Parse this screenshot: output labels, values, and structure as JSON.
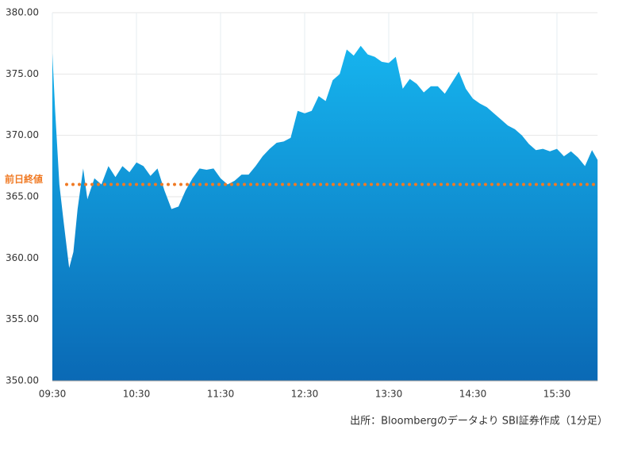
{
  "chart_data": {
    "type": "area",
    "x": [
      "09:30",
      "09:32",
      "09:35",
      "09:38",
      "09:42",
      "09:45",
      "09:48",
      "09:52",
      "09:55",
      "10:00",
      "10:05",
      "10:10",
      "10:15",
      "10:20",
      "10:25",
      "10:30",
      "10:35",
      "10:40",
      "10:45",
      "10:50",
      "10:55",
      "11:00",
      "11:05",
      "11:10",
      "11:15",
      "11:20",
      "11:25",
      "11:30",
      "11:35",
      "11:40",
      "11:45",
      "11:50",
      "11:55",
      "12:00",
      "12:05",
      "12:10",
      "12:15",
      "12:20",
      "12:25",
      "12:30",
      "12:35",
      "12:40",
      "12:45",
      "12:50",
      "12:55",
      "13:00",
      "13:05",
      "13:10",
      "13:15",
      "13:20",
      "13:25",
      "13:30",
      "13:35",
      "13:40",
      "13:45",
      "13:50",
      "13:55",
      "14:00",
      "14:05",
      "14:10",
      "14:15",
      "14:20",
      "14:25",
      "14:30",
      "14:35",
      "14:40",
      "14:45",
      "14:50",
      "14:55",
      "15:00",
      "15:05",
      "15:10",
      "15:15",
      "15:20",
      "15:25",
      "15:30",
      "15:35",
      "15:40",
      "15:45",
      "15:50",
      "15:55",
      "15:59"
    ],
    "values": [
      376.7,
      372,
      366,
      363,
      359.2,
      360.5,
      364,
      367.3,
      364.8,
      366.5,
      366,
      367.5,
      366.6,
      367.5,
      367,
      367.8,
      367.5,
      366.7,
      367.3,
      365.5,
      364,
      364.2,
      365.5,
      366.5,
      367.3,
      367.2,
      367.3,
      366.5,
      366,
      366.3,
      366.8,
      366.8,
      367.5,
      368.3,
      368.9,
      369.4,
      369.5,
      369.8,
      372,
      371.8,
      372,
      373.2,
      372.8,
      374.5,
      375,
      377,
      376.5,
      377.3,
      376.6,
      376.4,
      376,
      375.9,
      376.4,
      373.8,
      374.6,
      374.2,
      373.5,
      374,
      374,
      373.4,
      374.3,
      375.2,
      373.8,
      373,
      372.6,
      372.3,
      371.8,
      371.3,
      370.8,
      370.5,
      370,
      369.3,
      368.8,
      368.9,
      368.7,
      368.9,
      368.3,
      368.7,
      368.2,
      367.5,
      368.8,
      368
    ],
    "ylim": [
      350,
      380
    ],
    "yticks": [
      {
        "value": 350,
        "label": "350.00"
      },
      {
        "value": 355,
        "label": "355.00"
      },
      {
        "value": 360,
        "label": "360.00"
      },
      {
        "value": 365,
        "label": "365.00"
      },
      {
        "value": 370,
        "label": "370.00"
      },
      {
        "value": 375,
        "label": "375.00"
      },
      {
        "value": 380,
        "label": "380.00"
      }
    ],
    "xticks": [
      "09:30",
      "10:30",
      "11:30",
      "12:30",
      "13:30",
      "14:30",
      "15:30"
    ],
    "reference": {
      "label": "前日終値",
      "value": 366,
      "color": "#f07a24"
    },
    "grid": true,
    "source": "出所：Bloombergのデータより SBI証券作成（1分足）"
  }
}
